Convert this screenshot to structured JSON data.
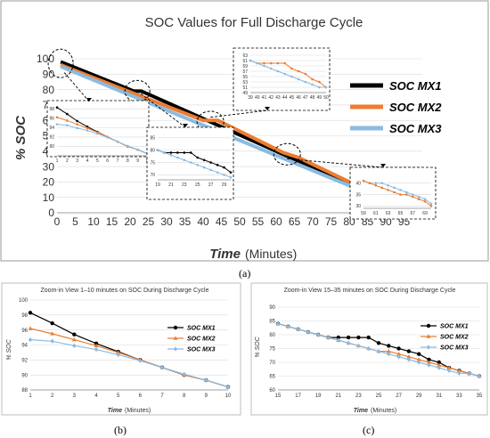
{
  "captions": {
    "a": "(a)",
    "b": "(b)",
    "c": "(c)"
  },
  "chart_data": [
    {
      "id": "a",
      "type": "line",
      "title": "SOC Values for Full Discharge Cycle",
      "xlabel": "Time",
      "xlabel_unit": "(Minutes)",
      "ylabel": "% SOC",
      "xlim": [
        0,
        100
      ],
      "ylim": [
        0,
        100
      ],
      "xticks": [
        0,
        5,
        10,
        15,
        20,
        25,
        30,
        35,
        40,
        45,
        50,
        55,
        60,
        65,
        70,
        75,
        80,
        85,
        90,
        95
      ],
      "yticks": [
        0,
        10,
        20,
        30,
        40,
        50,
        60,
        70,
        80,
        90,
        100
      ],
      "grid": true,
      "legend_position": "right",
      "series": [
        {
          "name": "SOC MX1",
          "color": "#000000",
          "x": [
            1,
            21,
            23,
            25,
            95
          ],
          "y": [
            98,
            79,
            79,
            77,
            3
          ]
        },
        {
          "name": "SOC MX2",
          "color": "#ED7D31",
          "x": [
            1,
            40,
            44,
            62,
            66,
            95
          ],
          "y": [
            96,
            60,
            60,
            39,
            36,
            3
          ]
        },
        {
          "name": "SOC MX3",
          "color": "#8CBBE0",
          "x": [
            1,
            95
          ],
          "y": [
            95,
            3
          ]
        }
      ],
      "insets": [
        {
          "xticks": [
            1,
            2,
            3,
            4,
            5,
            6,
            7,
            8,
            9,
            10
          ],
          "yticks": [
            90,
            92,
            94,
            96,
            98
          ],
          "xlim": [
            1,
            10
          ],
          "ylim": [
            88,
            99
          ]
        },
        {
          "xticks": [
            19,
            21,
            23,
            25,
            27,
            29
          ],
          "yticks": [
            70,
            75,
            80,
            85
          ],
          "xlim": [
            19,
            30
          ],
          "ylim": [
            68,
            86
          ]
        },
        {
          "xticks": [
            39,
            40,
            41,
            42,
            43,
            44,
            45,
            46,
            47,
            48,
            49,
            50
          ],
          "yticks": [
            49,
            51,
            53,
            55,
            57,
            59,
            61,
            63
          ],
          "xlim": [
            39,
            50
          ],
          "ylim": [
            49,
            63
          ]
        },
        {
          "xticks": [
            59,
            61,
            63,
            65,
            67,
            69
          ],
          "yticks": [
            30,
            35,
            40
          ],
          "xlim": [
            59,
            70
          ],
          "ylim": [
            29,
            43
          ]
        }
      ]
    },
    {
      "id": "b",
      "type": "line",
      "title": "Zoom-in View 1–10 minutes on SOC During Discharge Cycle",
      "xlabel": "Time",
      "xlabel_unit": "(Minutes)",
      "ylabel": "% SOC",
      "xlim": [
        1,
        10
      ],
      "ylim": [
        88,
        100
      ],
      "xticks": [
        1,
        2,
        3,
        4,
        5,
        6,
        7,
        8,
        9,
        10
      ],
      "yticks": [
        88,
        90,
        92,
        94,
        96,
        98,
        100
      ],
      "grid": true,
      "legend_position": "right",
      "x": [
        1,
        2,
        3,
        4,
        5,
        6,
        7,
        8,
        9,
        10
      ],
      "series": [
        {
          "name": "SOC MX1",
          "color": "#000000",
          "marker": "circle",
          "values": [
            98.3,
            96.9,
            95.4,
            94.2,
            93.1,
            92.0,
            91.0,
            90.0,
            89.3,
            88.4
          ]
        },
        {
          "name": "SOC MX2",
          "color": "#ED7D31",
          "marker": "triangle",
          "values": [
            96.2,
            95.5,
            94.7,
            93.9,
            93.0,
            92.0,
            91.0,
            90.0,
            89.3,
            88.4
          ]
        },
        {
          "name": "SOC MX3",
          "color": "#8CBBE0",
          "marker": "diamond",
          "values": [
            94.7,
            94.5,
            93.9,
            93.4,
            92.7,
            91.9,
            91.0,
            90.1,
            89.3,
            88.4
          ]
        }
      ]
    },
    {
      "id": "c",
      "type": "line",
      "title": "Zoom-in View 15–35 minutes on SOC During Discharge Cycle",
      "xlabel": "Time",
      "xlabel_unit": "(Minutes)",
      "ylabel": "% SOC",
      "xlim": [
        15,
        35
      ],
      "ylim": [
        60,
        90
      ],
      "xticks": [
        15,
        17,
        19,
        21,
        23,
        25,
        27,
        29,
        31,
        33,
        35
      ],
      "yticks": [
        60,
        65,
        70,
        75,
        80,
        85,
        90
      ],
      "grid": true,
      "legend_position": "top-right",
      "x": [
        15,
        16,
        17,
        18,
        19,
        20,
        21,
        22,
        23,
        24,
        25,
        26,
        27,
        28,
        29,
        30,
        31,
        32,
        33,
        34,
        35
      ],
      "series": [
        {
          "name": "SOC MX1",
          "color": "#000000",
          "marker": "circle",
          "values": [
            84,
            83,
            82,
            81,
            80,
            79,
            79,
            79,
            79,
            79,
            77,
            76,
            75,
            74,
            73,
            71,
            70,
            68,
            67,
            66,
            65
          ]
        },
        {
          "name": "SOC MX2",
          "color": "#ED7D31",
          "marker": "triangle",
          "values": [
            84,
            83,
            82,
            81,
            80,
            79,
            78,
            77,
            76,
            75,
            74,
            74,
            73,
            72,
            71,
            70,
            69,
            68,
            67,
            66,
            65
          ]
        },
        {
          "name": "SOC MX3",
          "color": "#8CBBE0",
          "marker": "diamond",
          "values": [
            84,
            83,
            82,
            81,
            80,
            79,
            78,
            77,
            76,
            75,
            74,
            73,
            72,
            71,
            70,
            69,
            68,
            67,
            66,
            66,
            65
          ]
        }
      ]
    }
  ]
}
